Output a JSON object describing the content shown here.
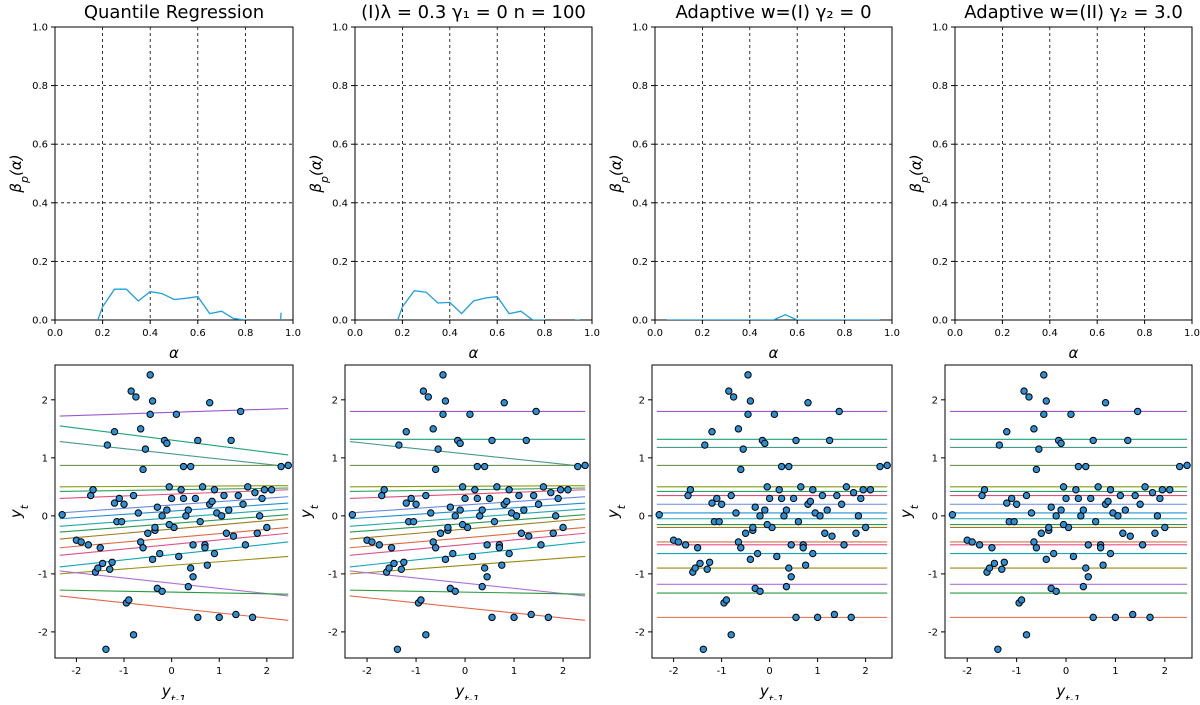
{
  "chart_data": [
    {
      "type": "line",
      "title": "Quantile Regression",
      "xlabel": "α",
      "ylabel": "β_p(α)",
      "xlim": [
        0,
        1
      ],
      "ylim": [
        0,
        1
      ],
      "xticks": [
        "0.0",
        "0.2",
        "0.4",
        "0.6",
        "0.8",
        "1.0"
      ],
      "yticks": [
        "0.0",
        "0.2",
        "0.4",
        "0.6",
        "0.8",
        "1.0"
      ],
      "grid": true,
      "series": [
        {
          "color": "#1f9fe0",
          "segments": [
            [
              [
                0.15,
                -0.2
              ],
              [
                0.18,
                0.0
              ],
              [
                0.2,
                0.045
              ],
              [
                0.25,
                0.105
              ],
              [
                0.3,
                0.105
              ],
              [
                0.35,
                0.065
              ],
              [
                0.4,
                0.097
              ],
              [
                0.45,
                0.09
              ],
              [
                0.5,
                0.07
              ],
              [
                0.55,
                0.074
              ],
              [
                0.6,
                0.08
              ],
              [
                0.65,
                0.022
              ],
              [
                0.7,
                0.03
              ],
              [
                0.75,
                0.005
              ],
              [
                0.8,
                0.0
              ],
              [
                0.82,
                -0.2
              ]
            ],
            [
              [
                0.93,
                -0.2
              ],
              [
                0.95,
                0.025
              ]
            ]
          ]
        }
      ]
    },
    {
      "type": "line",
      "title": "(I)λ = 0.3   γ₁ = 0   n = 100",
      "xlabel": "α",
      "ylabel": "β_p(α)",
      "xlim": [
        0,
        1
      ],
      "ylim": [
        0,
        1
      ],
      "xticks": [
        "0.0",
        "0.2",
        "0.4",
        "0.6",
        "0.8",
        "1.0"
      ],
      "yticks": [
        "0.0",
        "0.2",
        "0.4",
        "0.6",
        "0.8",
        "1.0"
      ],
      "grid": true,
      "series": [
        {
          "color": "#1f9fe0",
          "segments": [
            [
              [
                0.15,
                -0.2
              ],
              [
                0.18,
                0.0
              ],
              [
                0.2,
                0.045
              ],
              [
                0.25,
                0.1
              ],
              [
                0.3,
                0.095
              ],
              [
                0.35,
                0.058
              ],
              [
                0.4,
                0.06
              ],
              [
                0.45,
                0.022
              ],
              [
                0.5,
                0.065
              ],
              [
                0.55,
                0.075
              ],
              [
                0.6,
                0.08
              ],
              [
                0.65,
                0.022
              ],
              [
                0.7,
                0.03
              ],
              [
                0.75,
                0.0
              ],
              [
                0.8,
                0.0
              ],
              [
                0.82,
                -0.2
              ]
            ],
            [
              [
                0.9,
                -0.2
              ],
              [
                0.93,
                0.0
              ],
              [
                0.95,
                0.0
              ]
            ]
          ]
        }
      ]
    },
    {
      "type": "line",
      "title": "Adaptive w=(I) γ₂ = 0",
      "xlabel": "α",
      "ylabel": "β_p(α)",
      "xlim": [
        0,
        1
      ],
      "ylim": [
        0,
        1
      ],
      "xticks": [
        "0.0",
        "0.2",
        "0.4",
        "0.6",
        "0.8",
        "1.0"
      ],
      "yticks": [
        "0.0",
        "0.2",
        "0.4",
        "0.6",
        "0.8",
        "1.0"
      ],
      "grid": true,
      "series": [
        {
          "color": "#1f9fe0",
          "segments": [
            [
              [
                0.05,
                0.0
              ],
              [
                0.5,
                0.0
              ],
              [
                0.55,
                0.018
              ],
              [
                0.6,
                0.0
              ],
              [
                0.95,
                0.0
              ]
            ]
          ]
        }
      ]
    },
    {
      "type": "line",
      "title": "Adaptive w=(II) γ₂ = 3.0",
      "xlabel": "α",
      "ylabel": "β_p(α)",
      "xlim": [
        0,
        1
      ],
      "ylim": [
        0,
        1
      ],
      "xticks": [
        "0.0",
        "0.2",
        "0.4",
        "0.6",
        "0.8",
        "1.0"
      ],
      "yticks": [
        "0.0",
        "0.2",
        "0.4",
        "0.6",
        "0.8",
        "1.0"
      ],
      "grid": true,
      "series": []
    },
    {
      "type": "scatter",
      "xlabel": "y_{t-1}",
      "ylabel": "y_t",
      "xlim": [
        -2.45,
        2.55
      ],
      "ylim": [
        -2.45,
        2.6
      ],
      "xticks": [
        -2,
        -1,
        0,
        1,
        2
      ],
      "yticks": [
        -2,
        -1,
        0,
        1,
        2
      ],
      "lines": [
        {
          "y0": 1.72,
          "y1": 1.85,
          "color": "#9b59d0"
        },
        {
          "y0": 1.55,
          "y1": 1.05,
          "color": "#1aa37a"
        },
        {
          "y0": 1.28,
          "y1": 0.85,
          "color": "#4a9a8a"
        },
        {
          "y0": 0.87,
          "y1": 0.87,
          "color": "#5a8a3a"
        },
        {
          "y0": 0.5,
          "y1": 0.52,
          "color": "#8a9a10"
        },
        {
          "y0": 0.42,
          "y1": 0.48,
          "color": "#2aa060"
        },
        {
          "y0": 0.3,
          "y1": 0.45,
          "color": "#e0507a"
        },
        {
          "y0": 0.05,
          "y1": 0.33,
          "color": "#6a8ae0"
        },
        {
          "y0": -0.05,
          "y1": 0.22,
          "color": "#2090d0"
        },
        {
          "y0": -0.18,
          "y1": 0.12,
          "color": "#20a8b0"
        },
        {
          "y0": -0.28,
          "y1": 0.02,
          "color": "#2a9a50"
        },
        {
          "y0": -0.4,
          "y1": -0.05,
          "color": "#a07a20"
        },
        {
          "y0": -0.55,
          "y1": -0.2,
          "color": "#e06a40"
        },
        {
          "y0": -0.68,
          "y1": -0.3,
          "color": "#e0508a"
        },
        {
          "y0": -0.88,
          "y1": -0.45,
          "color": "#10a8b8"
        },
        {
          "y0": -1.0,
          "y1": -0.7,
          "color": "#9a8a10"
        },
        {
          "y0": -0.95,
          "y1": -1.38,
          "color": "#b070d8"
        },
        {
          "y0": -1.28,
          "y1": -1.35,
          "color": "#2a9a40"
        },
        {
          "y0": -1.38,
          "y1": -1.8,
          "color": "#e06a4a"
        }
      ],
      "points": [
        [
          -2.3,
          0.02
        ],
        [
          -2.0,
          -0.42
        ],
        [
          -1.9,
          -0.45
        ],
        [
          -1.75,
          -0.5
        ],
        [
          -1.7,
          0.35
        ],
        [
          -1.65,
          0.45
        ],
        [
          -1.6,
          -0.97
        ],
        [
          -1.55,
          -0.9
        ],
        [
          -1.5,
          -0.55
        ],
        [
          -1.45,
          -0.82
        ],
        [
          -1.35,
          1.22
        ],
        [
          -1.3,
          -0.92
        ],
        [
          -1.25,
          -0.8
        ],
        [
          -1.2,
          1.45
        ],
        [
          -1.15,
          -0.1
        ],
        [
          -1.1,
          0.3
        ],
        [
          -1.05,
          -0.1
        ],
        [
          -1.0,
          0.2
        ],
        [
          -0.95,
          -1.5
        ],
        [
          -0.9,
          -1.45
        ],
        [
          -0.85,
          2.15
        ],
        [
          -0.8,
          -2.05
        ],
        [
          -0.75,
          2.05
        ],
        [
          -0.7,
          0.05
        ],
        [
          -0.65,
          -0.45
        ],
        [
          -0.6,
          -0.55
        ],
        [
          -0.55,
          1.15
        ],
        [
          -0.5,
          -0.3
        ],
        [
          -0.45,
          1.75
        ],
        [
          -0.4,
          -0.75
        ],
        [
          -0.35,
          -0.25
        ],
        [
          -0.3,
          0.15
        ],
        [
          -0.25,
          -0.65
        ],
        [
          -0.2,
          0.0
        ],
        [
          -0.15,
          1.3
        ],
        [
          -0.1,
          0.1
        ],
        [
          -0.05,
          0.5
        ],
        [
          0.0,
          0.3
        ],
        [
          0.05,
          -0.2
        ],
        [
          0.1,
          1.75
        ],
        [
          0.15,
          -0.7
        ],
        [
          0.2,
          0.45
        ],
        [
          0.25,
          0.3
        ],
        [
          0.3,
          0.0
        ],
        [
          0.35,
          0.1
        ],
        [
          0.4,
          -0.9
        ],
        [
          0.45,
          -0.5
        ],
        [
          0.5,
          0.3
        ],
        [
          0.55,
          1.3
        ],
        [
          0.6,
          -0.1
        ],
        [
          0.65,
          0.5
        ],
        [
          0.7,
          -0.5
        ],
        [
          0.75,
          -0.85
        ],
        [
          0.8,
          0.2
        ],
        [
          0.85,
          0.25
        ],
        [
          0.9,
          -0.65
        ],
        [
          0.95,
          0.05
        ],
        [
          1.0,
          -1.75
        ],
        [
          1.05,
          0.0
        ],
        [
          1.1,
          0.35
        ],
        [
          1.15,
          -0.3
        ],
        [
          1.2,
          0.1
        ],
        [
          1.25,
          1.3
        ],
        [
          1.3,
          -0.35
        ],
        [
          1.35,
          -1.7
        ],
        [
          1.4,
          0.35
        ],
        [
          1.45,
          1.8
        ],
        [
          1.5,
          0.2
        ],
        [
          1.55,
          -0.5
        ],
        [
          1.6,
          0.5
        ],
        [
          1.7,
          -1.75
        ],
        [
          1.75,
          0.4
        ],
        [
          1.8,
          -0.3
        ],
        [
          1.85,
          0.0
        ],
        [
          1.9,
          0.3
        ],
        [
          2.0,
          -0.2
        ],
        [
          2.1,
          0.45
        ],
        [
          2.3,
          0.85
        ],
        [
          2.45,
          0.87
        ],
        [
          -0.65,
          1.5
        ],
        [
          -0.6,
          0.8
        ],
        [
          -0.3,
          -1.25
        ],
        [
          -0.4,
          1.98
        ],
        [
          -1.38,
          -2.3
        ],
        [
          -0.45,
          2.43
        ],
        [
          0.25,
          0.85
        ],
        [
          0.4,
          0.85
        ],
        [
          -0.1,
          1.25
        ],
        [
          0.8,
          1.95
        ],
        [
          -1.2,
          0.22
        ],
        [
          0.45,
          -1.05
        ],
        [
          -0.2,
          -1.3
        ],
        [
          0.35,
          -1.22
        ],
        [
          1.95,
          0.45
        ],
        [
          0.9,
          0.45
        ],
        [
          -0.35,
          -0.2
        ],
        [
          0.55,
          -1.75
        ],
        [
          -0.05,
          -0.15
        ],
        [
          -0.8,
          0.35
        ],
        [
          0.7,
          -0.55
        ]
      ]
    },
    {
      "type": "scatter",
      "xlabel": "y_{t-1}",
      "ylabel": "y_t",
      "xlim": [
        -2.45,
        2.55
      ],
      "ylim": [
        -2.45,
        2.6
      ],
      "xticks": [
        -2,
        -1,
        0,
        1,
        2
      ],
      "yticks": [
        -2,
        -1,
        0,
        1,
        2
      ],
      "lines": [
        {
          "y0": 1.8,
          "y1": 1.8,
          "color": "#9b59d0"
        },
        {
          "y0": 1.32,
          "y1": 1.32,
          "color": "#1aa37a"
        },
        {
          "y0": 1.28,
          "y1": 0.85,
          "color": "#4a9a8a"
        },
        {
          "y0": 0.87,
          "y1": 0.87,
          "color": "#5a8a3a"
        },
        {
          "y0": 0.5,
          "y1": 0.52,
          "color": "#8a9a10"
        },
        {
          "y0": 0.42,
          "y1": 0.48,
          "color": "#2aa060"
        },
        {
          "y0": 0.3,
          "y1": 0.45,
          "color": "#e0507a"
        },
        {
          "y0": 0.05,
          "y1": 0.33,
          "color": "#6a8ae0"
        },
        {
          "y0": -0.05,
          "y1": 0.22,
          "color": "#2090d0"
        },
        {
          "y0": -0.18,
          "y1": 0.12,
          "color": "#20a8b0"
        },
        {
          "y0": -0.28,
          "y1": 0.02,
          "color": "#2a9a50"
        },
        {
          "y0": -0.4,
          "y1": -0.05,
          "color": "#a07a20"
        },
        {
          "y0": -0.55,
          "y1": -0.2,
          "color": "#e06a40"
        },
        {
          "y0": -0.68,
          "y1": -0.3,
          "color": "#e0508a"
        },
        {
          "y0": -0.88,
          "y1": -0.45,
          "color": "#10a8b8"
        },
        {
          "y0": -1.0,
          "y1": -0.7,
          "color": "#9a8a10"
        },
        {
          "y0": -0.95,
          "y1": -1.38,
          "color": "#b070d8"
        },
        {
          "y0": -1.28,
          "y1": -1.35,
          "color": "#2a9a40"
        },
        {
          "y0": -1.38,
          "y1": -1.8,
          "color": "#e06a4a"
        }
      ],
      "points": "same-as-first"
    },
    {
      "type": "scatter",
      "xlabel": "y_{t-1}",
      "ylabel": "y_t",
      "xlim": [
        -2.45,
        2.55
      ],
      "ylim": [
        -2.45,
        2.6
      ],
      "xticks": [
        -2,
        -1,
        0,
        1,
        2
      ],
      "yticks": [
        -2,
        -1,
        0,
        1,
        2
      ],
      "lines": [
        {
          "y0": 1.8,
          "y1": 1.8,
          "color": "#9b59d0"
        },
        {
          "y0": 1.32,
          "y1": 1.32,
          "color": "#1aa37a"
        },
        {
          "y0": 1.18,
          "y1": 1.18,
          "color": "#4a9a8a"
        },
        {
          "y0": 0.87,
          "y1": 0.87,
          "color": "#5a8a3a"
        },
        {
          "y0": 0.5,
          "y1": 0.5,
          "color": "#8a9a10"
        },
        {
          "y0": 0.42,
          "y1": 0.42,
          "color": "#2aa060"
        },
        {
          "y0": 0.35,
          "y1": 0.35,
          "color": "#e0507a"
        },
        {
          "y0": 0.2,
          "y1": 0.2,
          "color": "#6a8ae0"
        },
        {
          "y0": 0.05,
          "y1": 0.05,
          "color": "#2090d0"
        },
        {
          "y0": -0.05,
          "y1": -0.05,
          "color": "#20a8b0"
        },
        {
          "y0": -0.15,
          "y1": -0.15,
          "color": "#2a9a50"
        },
        {
          "y0": -0.2,
          "y1": -0.2,
          "color": "#a07a20"
        },
        {
          "y0": -0.45,
          "y1": -0.45,
          "color": "#e06a40"
        },
        {
          "y0": -0.5,
          "y1": -0.5,
          "color": "#e0508a"
        },
        {
          "y0": -0.65,
          "y1": -0.65,
          "color": "#10a8b8"
        },
        {
          "y0": -0.9,
          "y1": -0.9,
          "color": "#9a8a10"
        },
        {
          "y0": -1.18,
          "y1": -1.18,
          "color": "#b070d8"
        },
        {
          "y0": -1.33,
          "y1": -1.33,
          "color": "#2a9a40"
        },
        {
          "y0": -1.75,
          "y1": -1.75,
          "color": "#e06a4a"
        }
      ],
      "points": "same-as-first"
    },
    {
      "type": "scatter",
      "xlabel": "y_{t-1}",
      "ylabel": "y_t",
      "xlim": [
        -2.45,
        2.55
      ],
      "ylim": [
        -2.45,
        2.6
      ],
      "xticks": [
        -2,
        -1,
        0,
        1,
        2
      ],
      "yticks": [
        -2,
        -1,
        0,
        1,
        2
      ],
      "lines": [
        {
          "y0": 1.8,
          "y1": 1.8,
          "color": "#9b59d0"
        },
        {
          "y0": 1.32,
          "y1": 1.32,
          "color": "#1aa37a"
        },
        {
          "y0": 1.18,
          "y1": 1.18,
          "color": "#4a9a8a"
        },
        {
          "y0": 0.87,
          "y1": 0.87,
          "color": "#5a8a3a"
        },
        {
          "y0": 0.5,
          "y1": 0.5,
          "color": "#8a9a10"
        },
        {
          "y0": 0.42,
          "y1": 0.42,
          "color": "#2aa060"
        },
        {
          "y0": 0.35,
          "y1": 0.35,
          "color": "#e0507a"
        },
        {
          "y0": 0.2,
          "y1": 0.2,
          "color": "#6a8ae0"
        },
        {
          "y0": 0.05,
          "y1": 0.05,
          "color": "#2090d0"
        },
        {
          "y0": -0.05,
          "y1": -0.05,
          "color": "#20a8b0"
        },
        {
          "y0": -0.15,
          "y1": -0.15,
          "color": "#2a9a50"
        },
        {
          "y0": -0.2,
          "y1": -0.2,
          "color": "#a07a20"
        },
        {
          "y0": -0.45,
          "y1": -0.45,
          "color": "#e06a40"
        },
        {
          "y0": -0.5,
          "y1": -0.5,
          "color": "#e0508a"
        },
        {
          "y0": -0.65,
          "y1": -0.65,
          "color": "#10a8b8"
        },
        {
          "y0": -0.9,
          "y1": -0.9,
          "color": "#9a8a10"
        },
        {
          "y0": -1.18,
          "y1": -1.18,
          "color": "#b070d8"
        },
        {
          "y0": -1.33,
          "y1": -1.33,
          "color": "#2a9a40"
        },
        {
          "y0": -1.75,
          "y1": -1.75,
          "color": "#e06a4a"
        }
      ],
      "points": "same-as-first"
    }
  ]
}
